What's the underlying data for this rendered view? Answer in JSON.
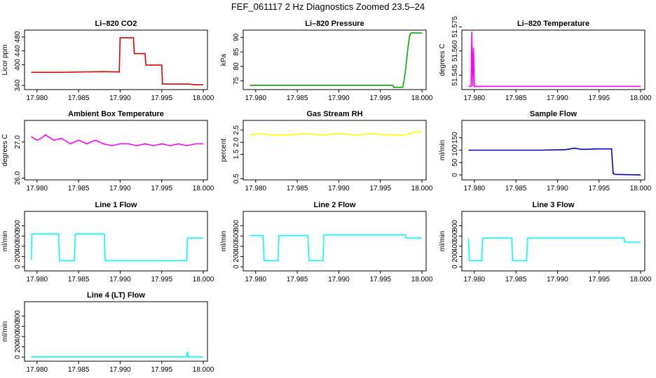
{
  "page": {
    "title": "FEF_061117  2 Hz Diagnostics Zoomed 23.5–24"
  },
  "chart_data": [
    {
      "type": "line",
      "title": "Li–820 CO2",
      "ylabel": "Licor ppm",
      "color": "#dd0000",
      "xlim": [
        17.9785,
        18.0005
      ],
      "xticks": [
        "17.980",
        "17.985",
        "17.990",
        "17.995",
        "18.000"
      ],
      "ylim": [
        328,
        500
      ],
      "yticks": [
        "340",
        "400",
        "440",
        "480"
      ],
      "grid": false,
      "series": [
        {
          "x": [
            17.9793,
            17.983,
            17.988,
            17.9899,
            17.99,
            17.9916,
            17.9917,
            17.993,
            17.9931,
            17.995,
            17.9951,
            17.9982,
            17.999,
            18.0
          ],
          "y": [
            378,
            378,
            380,
            379,
            478,
            478,
            432,
            432,
            399,
            399,
            344,
            344,
            342,
            342
          ]
        }
      ]
    },
    {
      "type": "line",
      "title": "Li–820 Pressure",
      "ylabel": "kPa",
      "color": "#00aa00",
      "xlim": [
        17.9785,
        18.0005
      ],
      "xticks": [
        "17.980",
        "17.985",
        "17.990",
        "17.995",
        "18.000"
      ],
      "ylim": [
        72,
        92.5
      ],
      "yticks": [
        "75",
        "80",
        "85",
        "90"
      ],
      "grid": false,
      "series": [
        {
          "x": [
            17.9793,
            17.995,
            17.9965,
            17.9966,
            17.9977,
            17.998,
            17.9983,
            17.9985,
            17.9987,
            18.0
          ],
          "y": [
            73.5,
            73.5,
            73.5,
            72.8,
            72.8,
            78,
            86,
            90.5,
            91.5,
            91.5
          ]
        }
      ]
    },
    {
      "type": "line",
      "title": "Li–820 Temperature",
      "ylabel": "degrees C",
      "color": "#ff00ff",
      "xlim": [
        17.9785,
        18.0005
      ],
      "xticks": [
        "17.980",
        "17.985",
        "17.990",
        "17.995",
        "18.000"
      ],
      "ylim": [
        51.536,
        51.573
      ],
      "yticks": [
        "51.545",
        "51.560",
        "51.575"
      ],
      "grid": false,
      "series": [
        {
          "x": [
            17.9793,
            17.9796,
            17.9797,
            17.9798,
            17.9799,
            17.98,
            17.9801,
            18.0
          ],
          "y": [
            51.538,
            51.538,
            51.572,
            51.538,
            51.562,
            51.538,
            51.538,
            51.538
          ]
        }
      ]
    },
    {
      "type": "line",
      "title": "Ambient Box Temperature",
      "ylabel": "degrees C",
      "color": "#ff00ff",
      "xlim": [
        17.9785,
        18.0005
      ],
      "xticks": [
        "17.980",
        "17.985",
        "17.990",
        "17.995",
        "18.000"
      ],
      "ylim": [
        25.95,
        27.6
      ],
      "yticks": [
        "26.0",
        "27.0"
      ],
      "grid": false,
      "series": [
        {
          "x": [
            17.9793,
            17.98,
            17.9805,
            17.981,
            17.982,
            17.983,
            17.984,
            17.985,
            17.986,
            17.987,
            17.988,
            17.989,
            17.99,
            17.991,
            17.992,
            17.993,
            17.994,
            17.995,
            17.996,
            17.997,
            17.998,
            17.999,
            18.0
          ],
          "y": [
            27.15,
            27.05,
            27.1,
            27.2,
            27.05,
            27.1,
            26.95,
            27.05,
            26.95,
            27.05,
            26.95,
            26.9,
            26.95,
            26.95,
            26.9,
            26.95,
            26.9,
            26.95,
            26.9,
            26.95,
            26.9,
            26.95,
            26.95
          ]
        }
      ]
    },
    {
      "type": "line",
      "title": "Gas Stream RH",
      "ylabel": "percent",
      "color": "#ffff00",
      "xlim": [
        17.9785,
        18.0005
      ],
      "xticks": [
        "17.980",
        "17.985",
        "17.990",
        "17.995",
        "18.000"
      ],
      "ylim": [
        0.45,
        2.9
      ],
      "yticks": [
        "0.5",
        "1.5",
        "2.0",
        "2.5"
      ],
      "grid": false,
      "series": [
        {
          "x": [
            17.9793,
            17.9805,
            17.982,
            17.984,
            17.986,
            17.988,
            17.99,
            17.992,
            17.994,
            17.996,
            17.998,
            17.999,
            18.0
          ],
          "y": [
            2.3,
            2.35,
            2.3,
            2.3,
            2.35,
            2.3,
            2.35,
            2.3,
            2.35,
            2.3,
            2.3,
            2.4,
            2.45
          ]
        }
      ]
    },
    {
      "type": "line",
      "title": "Sample Flow",
      "ylabel": "ml/min",
      "color": "#0000cc",
      "xlim": [
        17.9785,
        18.0005
      ],
      "xticks": [
        "17.980",
        "17.985",
        "17.990",
        "17.995",
        "18.000"
      ],
      "ylim": [
        -20,
        220
      ],
      "yticks": [
        "0",
        "50",
        "100",
        "150"
      ],
      "grid": false,
      "series": [
        {
          "x": [
            17.9793,
            17.988,
            17.991,
            17.992,
            17.993,
            17.995,
            17.9965,
            17.9967,
            17.997,
            18.0
          ],
          "y": [
            100,
            100,
            102,
            108,
            103,
            105,
            105,
            5,
            2,
            0
          ]
        }
      ]
    },
    {
      "type": "line",
      "title": "Line 1 Flow",
      "ylabel": "ml/min",
      "color": "#00ffff",
      "xlim": [
        17.9785,
        18.0005
      ],
      "xticks": [
        "17.980",
        "17.985",
        "17.990",
        "17.995",
        "18.000"
      ],
      "ylim": [
        -80,
        1080
      ],
      "yticks": [
        "0",
        "200",
        "400",
        "600",
        "800"
      ],
      "grid": false,
      "series": [
        {
          "x": [
            17.9793,
            17.9794,
            17.9826,
            17.9827,
            17.9845,
            17.9846,
            17.9881,
            17.9882,
            17.998,
            17.9981,
            18.0
          ],
          "y": [
            130,
            640,
            640,
            120,
            120,
            640,
            640,
            120,
            120,
            560,
            560
          ]
        }
      ]
    },
    {
      "type": "line",
      "title": "Line 2 Flow",
      "ylabel": "ml/min",
      "color": "#00ffff",
      "xlim": [
        17.9785,
        18.0005
      ],
      "xticks": [
        "17.980",
        "17.985",
        "17.990",
        "17.995",
        "18.000"
      ],
      "ylim": [
        -80,
        1080
      ],
      "yticks": [
        "0",
        "200",
        "400",
        "600",
        "800"
      ],
      "grid": false,
      "series": [
        {
          "x": [
            17.9793,
            17.9809,
            17.981,
            17.9827,
            17.9828,
            17.9863,
            17.9864,
            17.9881,
            17.9882,
            17.998,
            17.9981,
            18.0
          ],
          "y": [
            610,
            610,
            120,
            120,
            610,
            610,
            120,
            120,
            620,
            620,
            560,
            560
          ]
        }
      ]
    },
    {
      "type": "line",
      "title": "Line 3 Flow",
      "ylabel": "ml/min",
      "color": "#00ffff",
      "xlim": [
        17.9785,
        18.0005
      ],
      "xticks": [
        "17.980",
        "17.985",
        "17.990",
        "17.995",
        "18.000"
      ],
      "ylim": [
        -80,
        1080
      ],
      "yticks": [
        "0",
        "200",
        "400",
        "600",
        "800"
      ],
      "grid": false,
      "series": [
        {
          "x": [
            17.9793,
            17.9794,
            17.9809,
            17.981,
            17.9845,
            17.9846,
            17.9863,
            17.9864,
            17.998,
            17.9981,
            18.0
          ],
          "y": [
            560,
            120,
            120,
            560,
            560,
            120,
            120,
            560,
            560,
            480,
            480
          ]
        }
      ]
    },
    {
      "type": "line",
      "title": "Line 4 (LT) Flow",
      "ylabel": "ml/min",
      "color": "#00ffff",
      "xlim": [
        17.9785,
        18.0005
      ],
      "xticks": [
        "17.980",
        "17.985",
        "17.990",
        "17.995",
        "18.000"
      ],
      "ylim": [
        -80,
        1080
      ],
      "yticks": [
        "0",
        "200",
        "400",
        "600",
        "800"
      ],
      "grid": false,
      "series": [
        {
          "x": [
            17.9793,
            17.998,
            17.9981,
            17.9982,
            17.9983,
            18.0
          ],
          "y": [
            5,
            5,
            110,
            5,
            5,
            5
          ]
        }
      ]
    }
  ]
}
